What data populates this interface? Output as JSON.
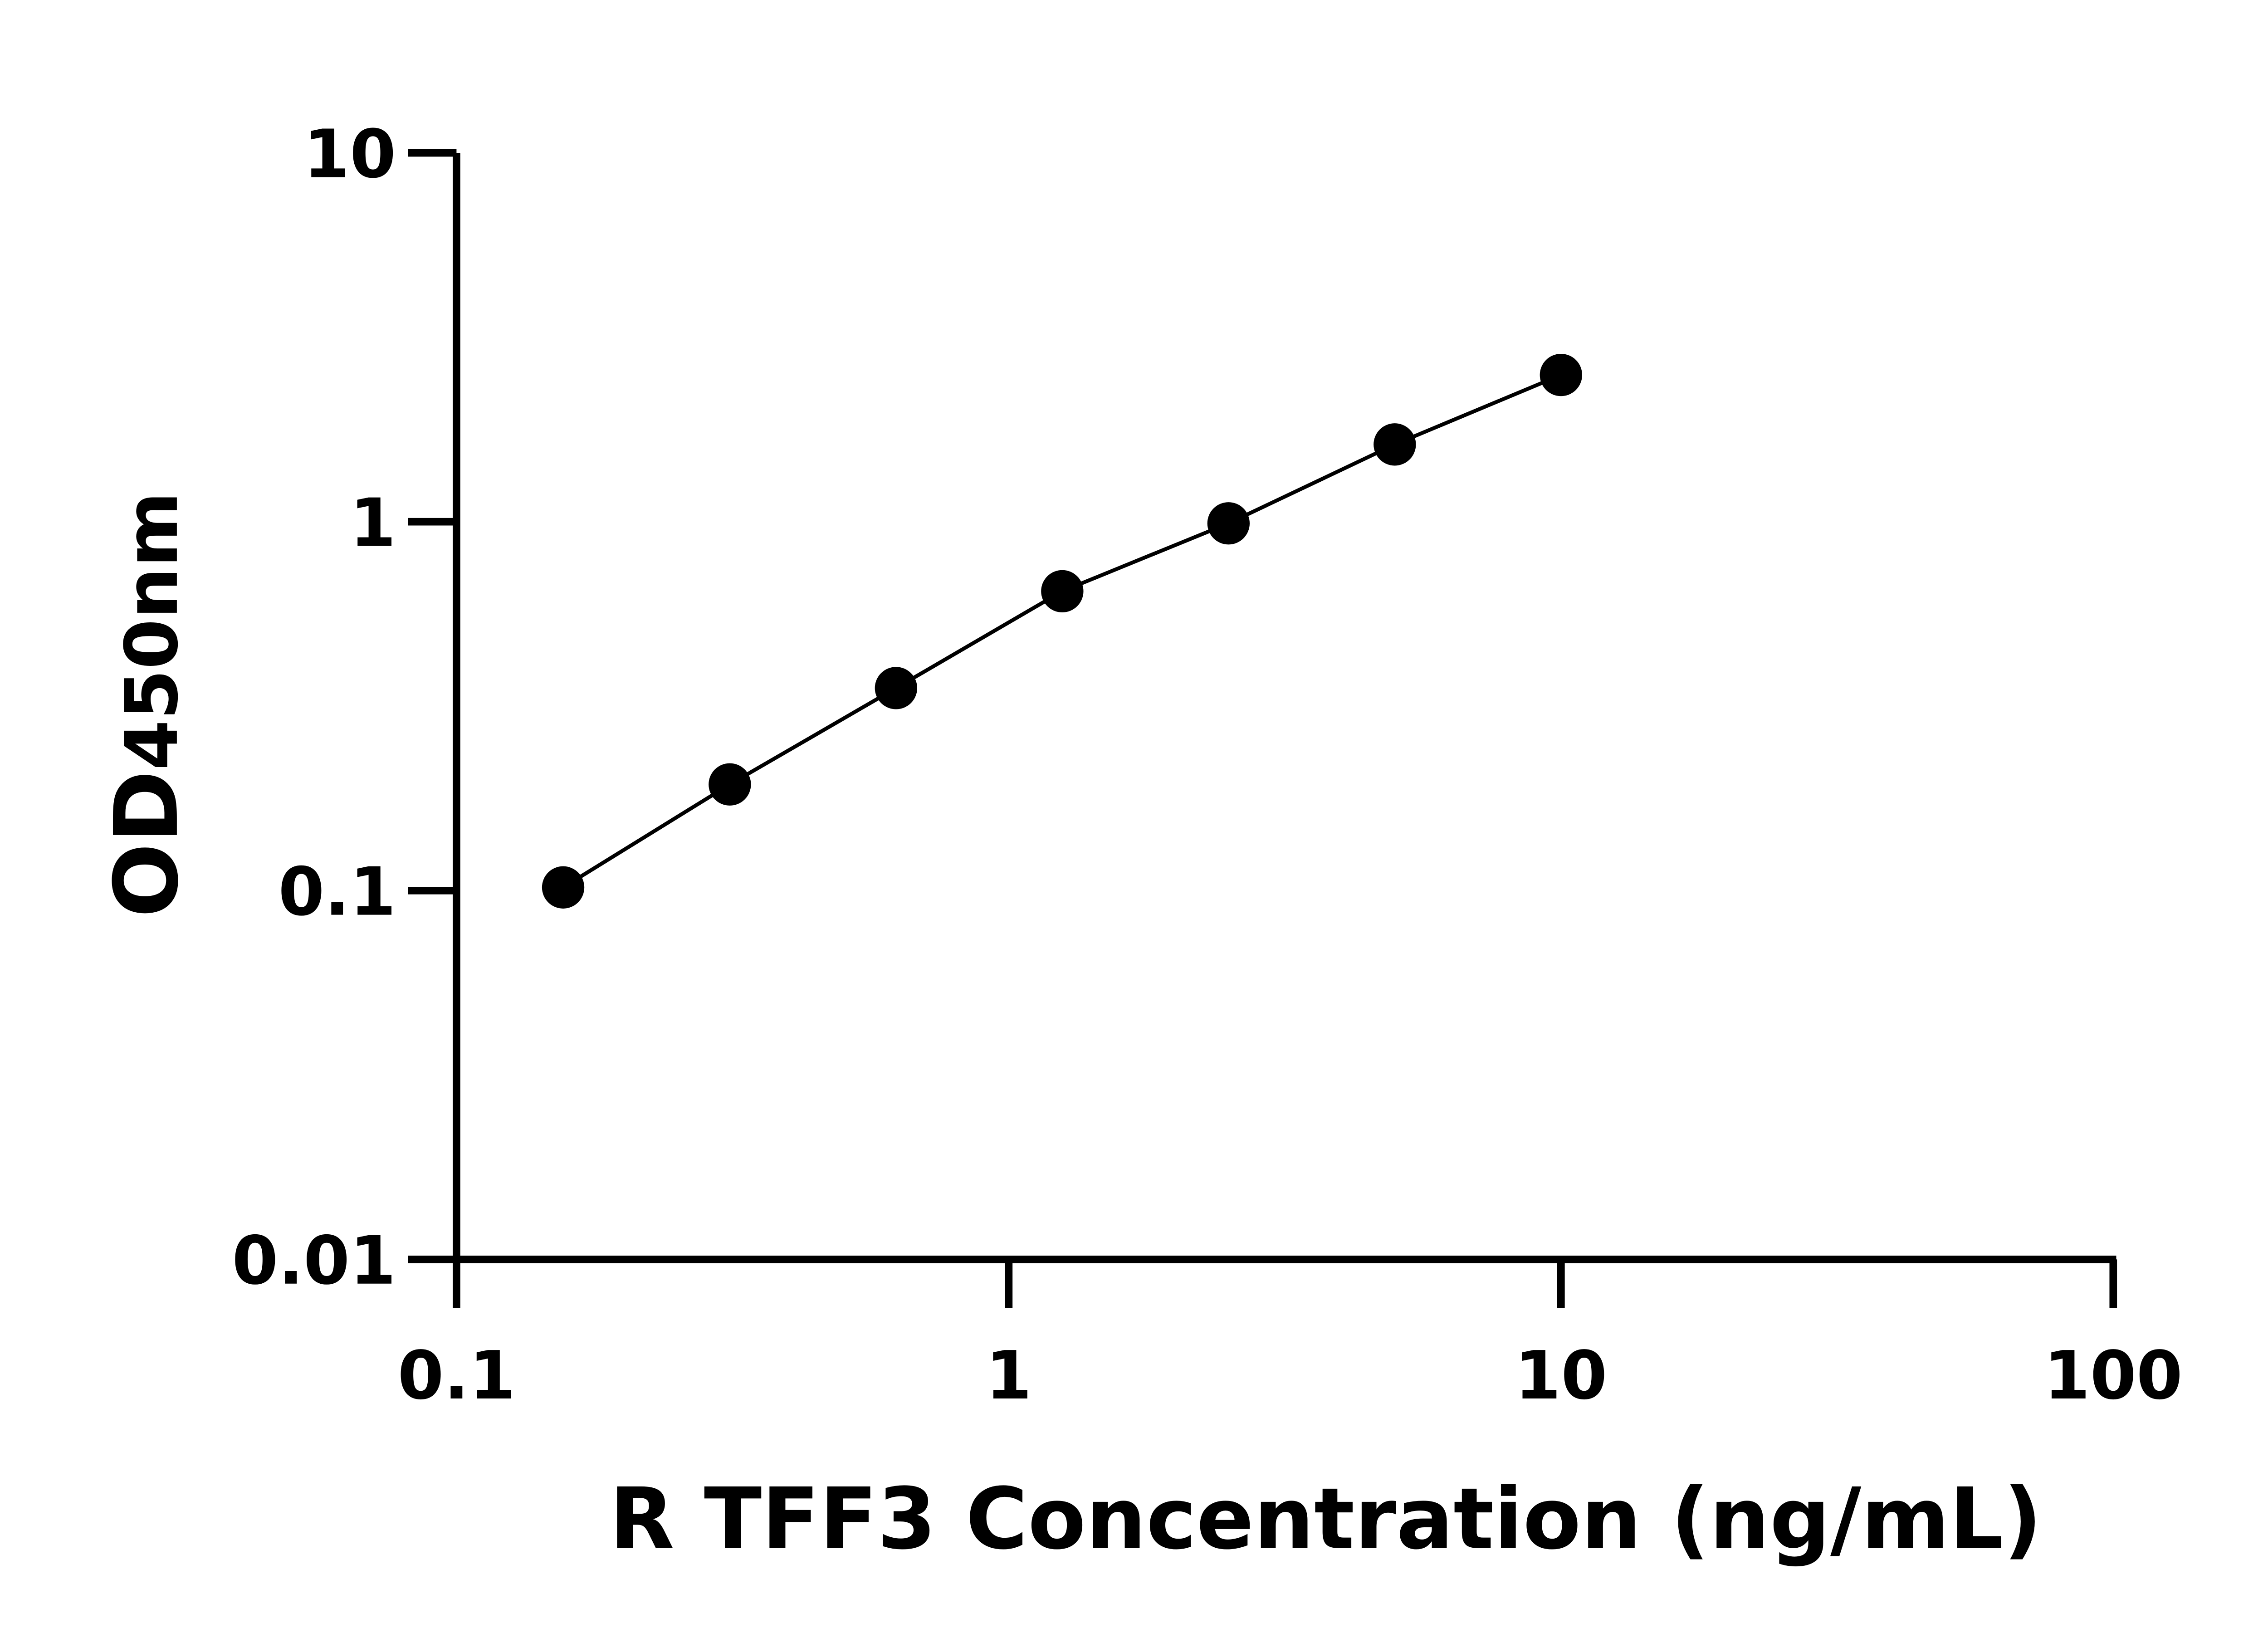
{
  "chart_data": {
    "type": "scatter",
    "title": "",
    "xlabel": "R TFF3 Concentration (ng/mL)",
    "ylabel": "OD",
    "ylabel_sub": "450nm",
    "x_scale": "log",
    "y_scale": "log",
    "xlim": [
      0.1,
      100
    ],
    "ylim": [
      0.01,
      10
    ],
    "x_ticks": [
      0.1,
      1,
      10,
      100
    ],
    "x_tick_labels": [
      "0.1",
      "1",
      "10",
      "100"
    ],
    "y_ticks": [
      0.01,
      0.1,
      1,
      10
    ],
    "y_tick_labels": [
      "0.01",
      "0.1",
      "1",
      "10"
    ],
    "grid": false,
    "legend": "none",
    "series": [
      {
        "x": [
          0.156,
          0.3125,
          0.625,
          1.25,
          2.5,
          5,
          10
        ],
        "y": [
          0.102,
          0.194,
          0.354,
          0.648,
          0.99,
          1.62,
          2.5
        ],
        "marker_color": "#000000",
        "line_color": "#000000",
        "fit_line": true
      }
    ]
  }
}
